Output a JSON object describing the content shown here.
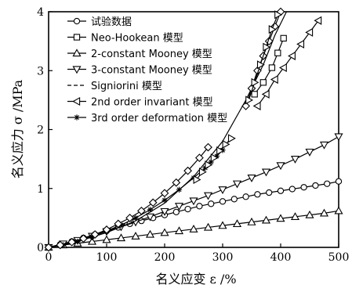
{
  "chart_data": {
    "type": "scatter",
    "xlabel": "名义应变 ε /%",
    "ylabel": "名义应力 σ /MPa",
    "xlim": [
      0,
      500
    ],
    "ylim": [
      0,
      4
    ],
    "xticks": [
      "0",
      "100",
      "200",
      "300",
      "400",
      "500"
    ],
    "yticks": [
      "0",
      "1",
      "2",
      "3",
      "4"
    ],
    "grid": false,
    "legend_position": "top-left",
    "series": [
      {
        "name": "试验数据",
        "marker": "circle",
        "x": [
          0,
          20,
          40,
          60,
          80,
          100,
          120,
          140,
          160,
          180,
          200,
          220,
          240,
          260,
          280,
          300,
          320,
          340,
          360,
          380,
          400,
          420,
          440,
          460,
          480,
          500
        ],
        "y": [
          0,
          0.05,
          0.1,
          0.16,
          0.22,
          0.28,
          0.34,
          0.4,
          0.45,
          0.5,
          0.55,
          0.6,
          0.65,
          0.7,
          0.74,
          0.78,
          0.82,
          0.86,
          0.9,
          0.93,
          0.96,
          0.99,
          1.02,
          1.05,
          1.08,
          1.12
        ]
      },
      {
        "name": "Neo-Hookean 模型",
        "marker": "square",
        "x": [
          355,
          370,
          385,
          395,
          405
        ],
        "y": [
          2.6,
          2.8,
          3.05,
          3.3,
          3.55
        ]
      },
      {
        "name": "2-constant Mooney 模型",
        "marker": "triangle-up",
        "x": [
          0,
          25,
          50,
          75,
          100,
          125,
          150,
          175,
          200,
          225,
          250,
          275,
          300,
          325,
          350,
          375,
          400,
          425,
          450,
          475,
          500
        ],
        "y": [
          0,
          0.04,
          0.07,
          0.1,
          0.13,
          0.16,
          0.19,
          0.22,
          0.25,
          0.28,
          0.31,
          0.34,
          0.37,
          0.4,
          0.43,
          0.46,
          0.49,
          0.52,
          0.55,
          0.58,
          0.62
        ]
      },
      {
        "name": "3-constant Mooney 模型",
        "marker": "triangle-down",
        "x": [
          0,
          25,
          50,
          75,
          100,
          125,
          150,
          175,
          200,
          225,
          250,
          275,
          300,
          325,
          350,
          375,
          400,
          425,
          450,
          475,
          500
        ],
        "y": [
          0,
          0.06,
          0.12,
          0.19,
          0.27,
          0.35,
          0.43,
          0.52,
          0.61,
          0.7,
          0.79,
          0.88,
          0.98,
          1.08,
          1.18,
          1.28,
          1.39,
          1.5,
          1.62,
          1.74,
          1.88
        ]
      },
      {
        "name": "Signiorini 模型",
        "marker": "none",
        "x": [
          0,
          50,
          100,
          150,
          200,
          250,
          300,
          340,
          370,
          390,
          410
        ],
        "y": [
          0,
          0.1,
          0.25,
          0.45,
          0.75,
          1.2,
          1.8,
          2.5,
          3.1,
          3.6,
          4.0
        ]
      },
      {
        "name": "2nd order invariant 模型",
        "marker": "triangle-left",
        "x": [
          360,
          375,
          390,
          405,
          420,
          435,
          450,
          465
        ],
        "y": [
          2.4,
          2.6,
          2.85,
          3.05,
          3.25,
          3.45,
          3.65,
          3.85
        ]
      },
      {
        "name": "3rd order deformation 模型",
        "marker": "star",
        "x": [
          0,
          25,
          50,
          75,
          100,
          125,
          150,
          175,
          200,
          225,
          250,
          270,
          280,
          290,
          300
        ],
        "y": [
          0,
          0.04,
          0.1,
          0.18,
          0.28,
          0.38,
          0.5,
          0.64,
          0.8,
          0.98,
          1.18,
          1.35,
          1.45,
          1.55,
          1.65
        ]
      }
    ],
    "extra_series": [
      {
        "marker": "diamond",
        "x": [
          0,
          20,
          40,
          60,
          80,
          100,
          120,
          140,
          160,
          180,
          200,
          220,
          240,
          260,
          275
        ],
        "y": [
          0,
          0.04,
          0.09,
          0.15,
          0.22,
          0.3,
          0.4,
          0.5,
          0.62,
          0.76,
          0.92,
          1.1,
          1.3,
          1.52,
          1.7
        ]
      },
      {
        "marker": "diamond",
        "x": [
          340,
          350,
          360,
          370,
          380,
          390,
          400
        ],
        "y": [
          2.4,
          2.7,
          3.0,
          3.25,
          3.5,
          3.75,
          4.0
        ]
      },
      {
        "marker": "triangle-right",
        "x": [
          255,
          265,
          275,
          285,
          295,
          305,
          315
        ],
        "y": [
          1.15,
          1.28,
          1.4,
          1.52,
          1.64,
          1.75,
          1.85
        ]
      },
      {
        "marker": "triangle-right",
        "x": [
          345,
          355,
          365,
          375,
          385,
          395
        ],
        "y": [
          2.5,
          2.8,
          3.1,
          3.4,
          3.7,
          3.95
        ]
      }
    ]
  }
}
